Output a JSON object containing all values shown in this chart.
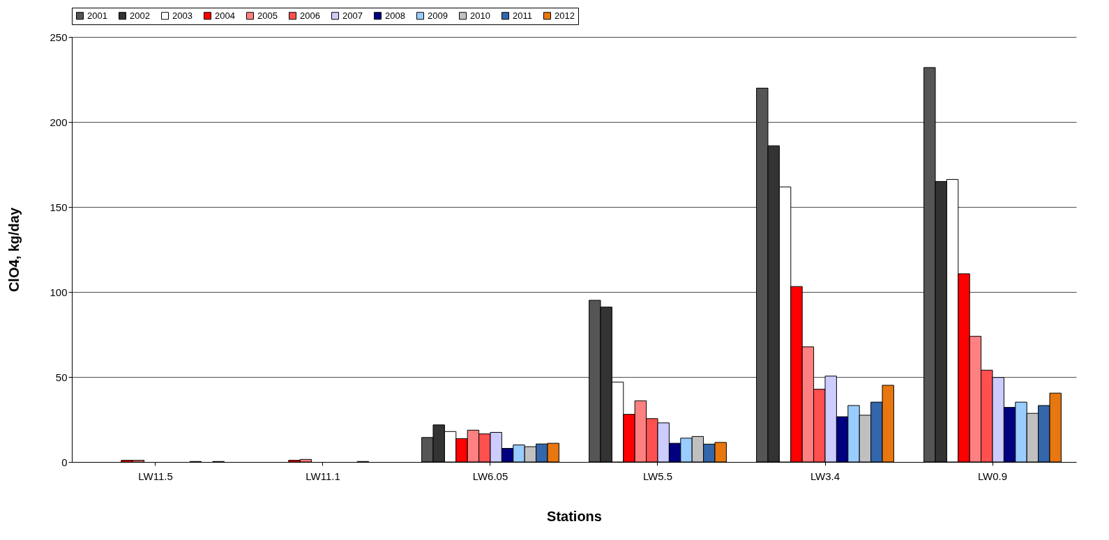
{
  "chart_data": {
    "type": "bar",
    "xlabel": "Stations",
    "ylabel": "ClO4, kg/day",
    "categories": [
      "LW11.5",
      "LW11.1",
      "LW6.05",
      "LW5.5",
      "LW3.4",
      "LW0.9"
    ],
    "ylim": [
      0,
      250
    ],
    "yticks": [
      0,
      50,
      100,
      150,
      200,
      250
    ],
    "grid": "y",
    "legend": "top",
    "series": [
      {
        "name": "2001",
        "color": "#555555",
        "values": [
          null,
          null,
          14.4,
          95.1,
          219.9,
          232
        ]
      },
      {
        "name": "2002",
        "color": "#333333",
        "values": [
          null,
          null,
          21.8,
          91.1,
          186,
          165
        ]
      },
      {
        "name": "2003",
        "color": "#ffffff",
        "values": [
          null,
          null,
          17.9,
          47,
          161.8,
          166.2
        ]
      },
      {
        "name": "2004",
        "color": "#ff0000",
        "values": [
          1,
          1,
          13.7,
          28,
          103.2,
          110.7
        ]
      },
      {
        "name": "2005",
        "color": "#ff8080",
        "values": [
          1,
          1.5,
          18.7,
          36,
          67.7,
          73.9
        ]
      },
      {
        "name": "2006",
        "color": "#ff5050",
        "values": [
          null,
          null,
          16.5,
          25.5,
          42.8,
          54
        ]
      },
      {
        "name": "2007",
        "color": "#ccccff",
        "values": [
          null,
          null,
          17.4,
          23,
          50.5,
          49.7
        ]
      },
      {
        "name": "2008",
        "color": "#000080",
        "values": [
          null,
          null,
          8,
          11,
          26.6,
          32.1
        ]
      },
      {
        "name": "2009",
        "color": "#99ccff",
        "values": [
          null,
          null,
          10,
          14,
          33.2,
          35.2
        ]
      },
      {
        "name": "2010",
        "color": "#c0c0c0",
        "values": [
          0.3,
          0.3,
          9,
          15,
          27.5,
          28.6
        ]
      },
      {
        "name": "2011",
        "color": "#3366aa",
        "values": [
          null,
          null,
          10.6,
          10.5,
          35.2,
          33.2
        ]
      },
      {
        "name": "2012",
        "color": "#e8770f",
        "values": [
          0.3,
          null,
          11,
          11.5,
          45.1,
          40.5
        ]
      }
    ]
  }
}
